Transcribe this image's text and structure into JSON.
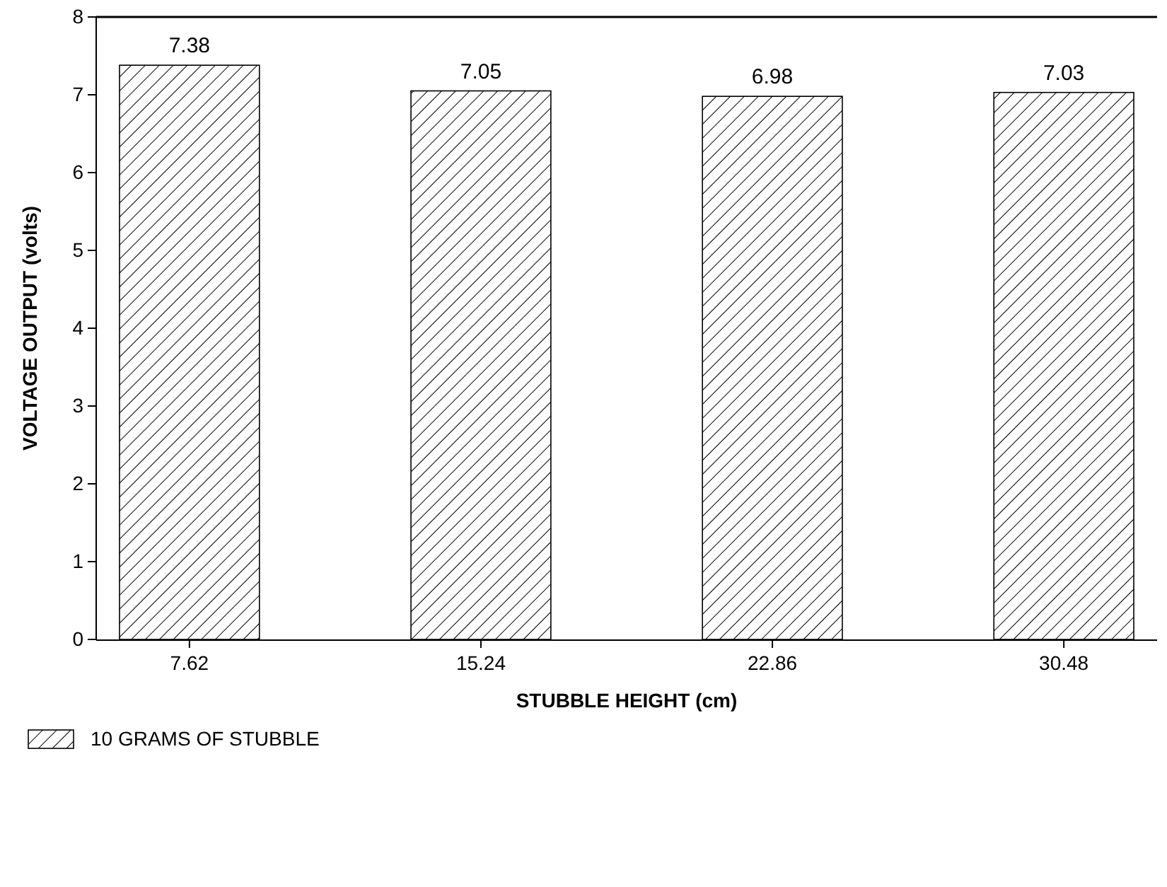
{
  "chart_data": {
    "type": "bar",
    "xlabel": "STUBBLE HEIGHT (cm)",
    "ylabel": "VOLTAGE OUTPUT (volts)",
    "categories": [
      "7.62",
      "15.24",
      "22.86",
      "30.48"
    ],
    "series": [
      {
        "name": "10 GRAMS OF STUBBLE",
        "color": "#000000",
        "values": [
          7.38,
          7.05,
          6.98,
          7.03
        ]
      }
    ],
    "ylim": [
      0,
      8
    ],
    "yticks": [
      0,
      1,
      2,
      3,
      4,
      5,
      6,
      7,
      8
    ],
    "data_labels": true,
    "grid": false,
    "legend": "bottom left"
  }
}
